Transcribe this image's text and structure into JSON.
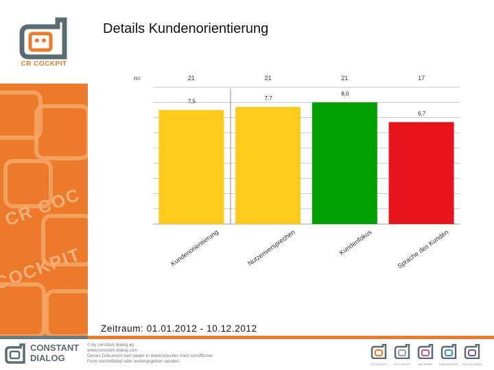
{
  "header": {
    "title": "Details Kundenorientierung",
    "logo_text": "CR COCKPIT"
  },
  "period": "Zeitraum: 01.01.2012 - 10.12.2012",
  "footer": {
    "brand_line1": "CONSTANT",
    "brand_line2": "DIALOG",
    "copyright_lines": [
      "© by constant dialog ag",
      "www.constant-dialog.com",
      "Dieses Dokument darf weder in elektronischer noch schriftlicher",
      "Form vervielfältigt oder weitergegeben werden."
    ],
    "mini_logos": [
      {
        "label": "CR COCKPIT",
        "color": "#ec7a2a"
      },
      {
        "label": "CR COCKPIT",
        "color": "#9a9a9a"
      },
      {
        "label": "VALUEMAP",
        "color": "#d94a8a"
      },
      {
        "label": "DIALOG DEVELOPMENT",
        "color": "#2f8fc6"
      },
      {
        "label": "DIALOG FEEDBACK",
        "color": "#7a4fa0"
      }
    ]
  },
  "colors": {
    "accent_orange": "#ec7a2a",
    "brand_gray": "#5a6c72"
  },
  "chart_data": {
    "type": "bar",
    "n_label": "n=",
    "categories": [
      "Kundenorientierung",
      "Nutzenversprechen",
      "Kundenfokus",
      "Sprache des Kunden"
    ],
    "n_values": [
      "21",
      "21",
      "21",
      "17"
    ],
    "values": [
      7.5,
      7.7,
      8.0,
      6.7
    ],
    "value_labels": [
      "7,5",
      "7,7",
      "8,0",
      "6,7"
    ],
    "bar_colors": [
      "#fecb1d",
      "#fecb1d",
      "#00a000",
      "#e8141b"
    ],
    "ylim": [
      0,
      10
    ],
    "grid": true,
    "title": "",
    "xlabel": "",
    "ylabel": ""
  }
}
